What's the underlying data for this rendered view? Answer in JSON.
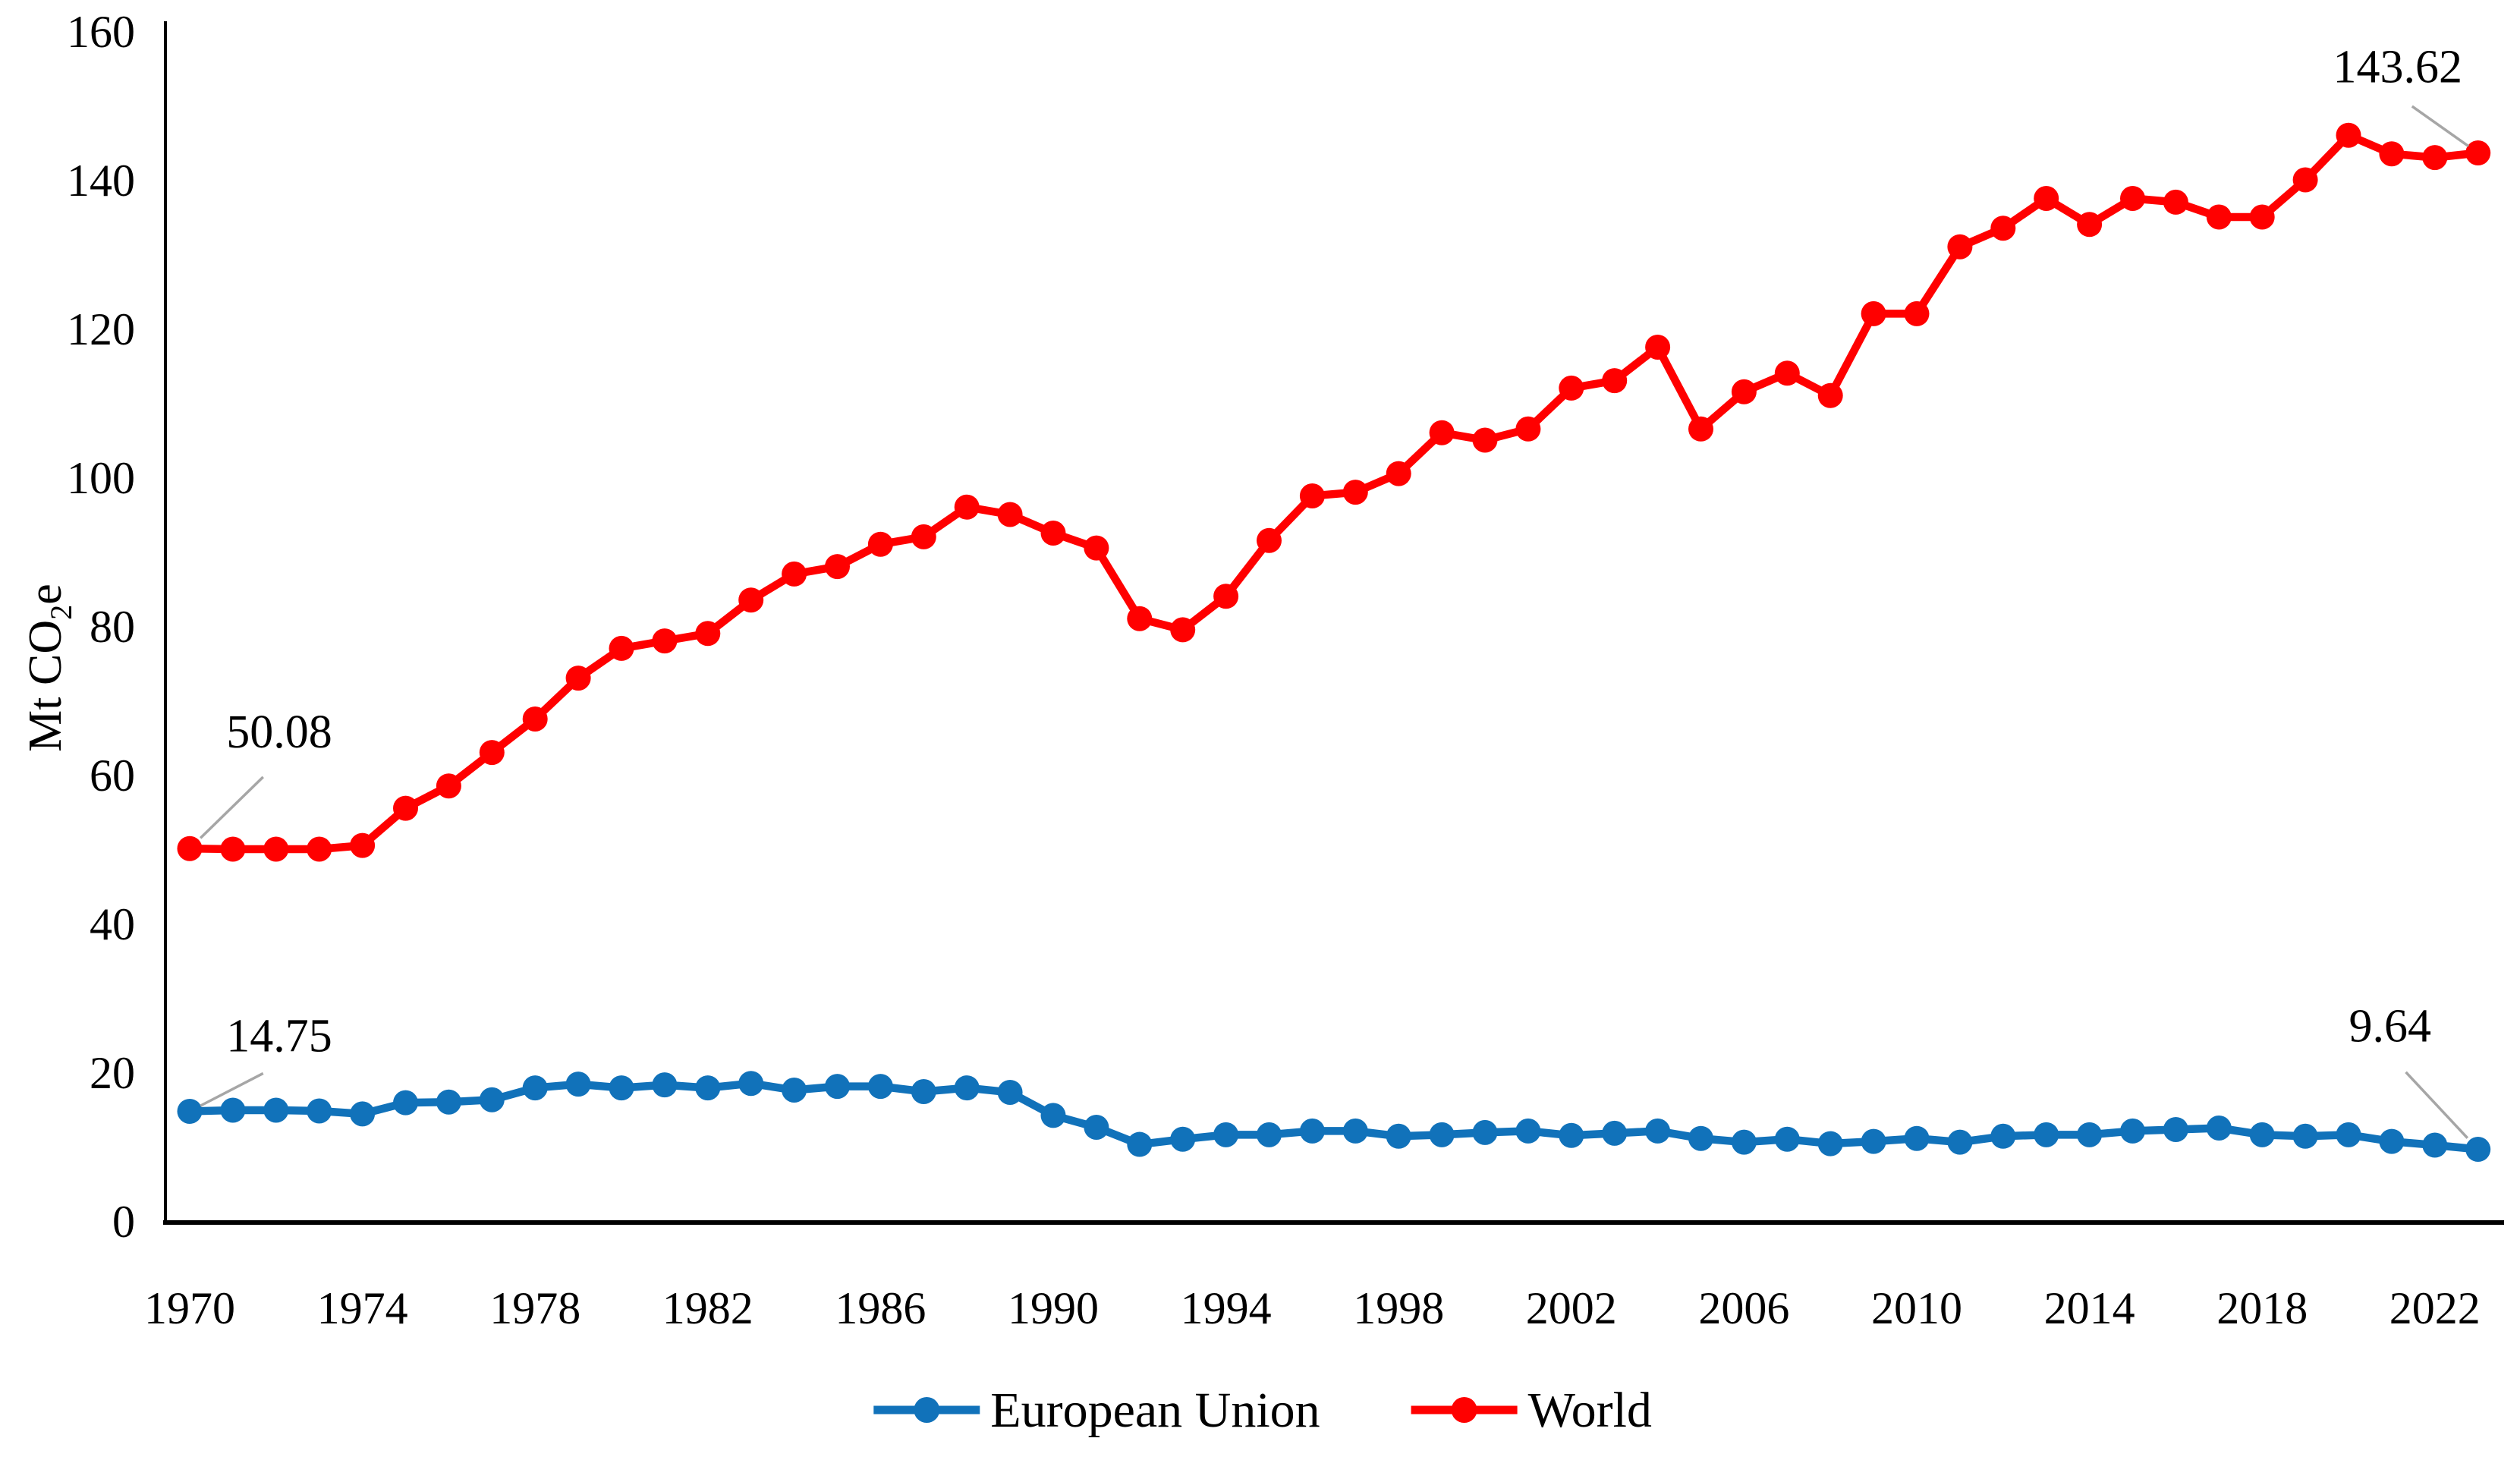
{
  "figure": {
    "background": "#ffffff",
    "axis_color": "#000000",
    "leader_line_color": "#a6a6a6",
    "text_color": "#000000"
  },
  "chart_data": {
    "type": "line",
    "title": "",
    "xlabel": "",
    "ylabel": {
      "prefix": "Mt CO",
      "sub": "2",
      "suffix": "e"
    },
    "ylim": [
      0,
      160
    ],
    "xlim": [
      1970,
      2023
    ],
    "grid": false,
    "legend_position": "bottom",
    "y_ticks": [
      0,
      20,
      40,
      60,
      80,
      100,
      120,
      140,
      160
    ],
    "x_ticks": [
      1970,
      1974,
      1978,
      1982,
      1986,
      1990,
      1994,
      1998,
      2002,
      2006,
      2010,
      2014,
      2018,
      2022
    ],
    "x": [
      1970,
      1971,
      1972,
      1973,
      1974,
      1975,
      1976,
      1977,
      1978,
      1979,
      1980,
      1981,
      1982,
      1983,
      1984,
      1985,
      1986,
      1987,
      1988,
      1989,
      1990,
      1991,
      1992,
      1993,
      1994,
      1995,
      1996,
      1997,
      1998,
      1999,
      2000,
      2001,
      2002,
      2003,
      2004,
      2005,
      2006,
      2007,
      2008,
      2009,
      2010,
      2011,
      2012,
      2013,
      2014,
      2015,
      2016,
      2017,
      2018,
      2019,
      2020,
      2021,
      2022,
      2023
    ],
    "series": [
      {
        "name": "European Union",
        "color": "#1172BA",
        "values": [
          14.75,
          14.9,
          14.9,
          14.8,
          14.4,
          15.9,
          16.0,
          16.3,
          17.9,
          18.4,
          17.9,
          18.3,
          17.9,
          18.5,
          17.6,
          18.1,
          18.1,
          17.4,
          17.9,
          17.3,
          14.2,
          12.6,
          10.3,
          11.0,
          11.6,
          11.6,
          12.1,
          12.1,
          11.4,
          11.6,
          11.9,
          12.1,
          11.5,
          11.8,
          12.1,
          11.1,
          10.6,
          11.0,
          10.4,
          10.7,
          11.1,
          10.6,
          11.4,
          11.6,
          11.6,
          12.1,
          12.3,
          12.5,
          11.6,
          11.4,
          11.6,
          10.7,
          10.2,
          9.64
        ]
      },
      {
        "name": "World",
        "color": "#FF0000",
        "values": [
          50.08,
          50.0,
          50.0,
          50.0,
          50.5,
          55.5,
          58.5,
          63.0,
          67.5,
          73.0,
          77.0,
          78.0,
          79.0,
          83.5,
          87.0,
          88.0,
          91.0,
          92.0,
          96.0,
          95.0,
          92.5,
          90.5,
          81.0,
          79.5,
          84.0,
          91.5,
          97.5,
          98.0,
          100.5,
          106.0,
          105.0,
          106.5,
          112.0,
          113.0,
          117.5,
          106.5,
          111.5,
          114.0,
          111.0,
          122.0,
          122.0,
          131.0,
          133.5,
          137.5,
          134.0,
          137.5,
          137.0,
          135.0,
          135.0,
          140.0,
          146.0,
          143.5,
          143.0,
          143.62
        ]
      }
    ],
    "annotations": [
      {
        "series": "World",
        "year": 1970,
        "text": "50.08"
      },
      {
        "series": "European Union",
        "year": 1970,
        "text": "14.75"
      },
      {
        "series": "World",
        "year": 2023,
        "text": "143.62"
      },
      {
        "series": "European Union",
        "year": 2023,
        "text": "9.64"
      }
    ]
  }
}
